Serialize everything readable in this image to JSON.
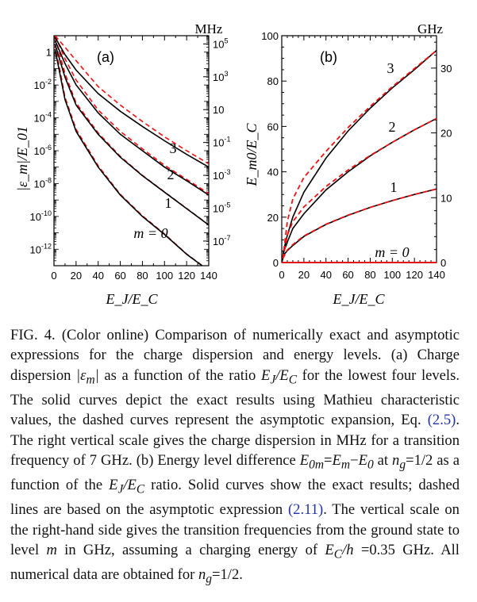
{
  "chart_data": [
    {
      "type": "line",
      "panel_label": "(a)",
      "xlabel": "E_J/E_C",
      "ylabel": "|ε_m|/E_01",
      "right_unit": "MHz",
      "y_scale": "log",
      "xlim": [
        0,
        140
      ],
      "ylim": [
        1e-13,
        10
      ],
      "x_ticks": [
        0,
        20,
        40,
        60,
        80,
        100,
        120,
        140
      ],
      "y_ticks_left": [
        {
          "base": "1",
          "exp": ""
        },
        {
          "base": "10",
          "exp": "-2"
        },
        {
          "base": "10",
          "exp": "-4"
        },
        {
          "base": "10",
          "exp": "-6"
        },
        {
          "base": "10",
          "exp": "-8"
        },
        {
          "base": "10",
          "exp": "-10"
        },
        {
          "base": "10",
          "exp": "-12"
        }
      ],
      "y_ticks_right": [
        {
          "base": "10",
          "exp": "5"
        },
        {
          "base": "10",
          "exp": "3"
        },
        {
          "base": "10",
          "exp": ""
        },
        {
          "base": "10",
          "exp": "-1"
        },
        {
          "base": "10",
          "exp": "-3"
        },
        {
          "base": "10",
          "exp": "-5"
        },
        {
          "base": "10",
          "exp": "-7"
        }
      ],
      "curve_labels": [
        "m = 0",
        "1",
        "2",
        "3"
      ],
      "series": [
        {
          "x": [
            1,
            10,
            20,
            40,
            60,
            80,
            100,
            120,
            140
          ],
          "y": [
            1.5,
            0.0013,
            1.5e-05,
            1e-07,
            2e-09,
            1e-10,
            8e-12,
            5e-13,
            5e-14
          ]
        },
        {
          "x": [
            1,
            10,
            20,
            40,
            60,
            80,
            100,
            120,
            140
          ],
          "y": [
            3,
            0.03,
            0.0006,
            1e-05,
            4e-07,
            3e-08,
            3e-09,
            3e-10,
            3e-11
          ]
        },
        {
          "x": [
            1,
            10,
            20,
            40,
            60,
            80,
            100,
            120,
            140
          ],
          "y": [
            5,
            0.2,
            0.01,
            0.0002,
            1e-05,
            1e-06,
            1e-07,
            1.5e-08,
            2e-09
          ]
        },
        {
          "x": [
            1,
            10,
            20,
            40,
            60,
            80,
            100,
            120,
            140
          ],
          "y": [
            8,
            0.7,
            0.08,
            0.003,
            0.00025,
            3e-05,
            4e-06,
            6e-07,
            1e-07
          ]
        }
      ],
      "asymptotic_series": [
        {
          "x": [
            1,
            10,
            20,
            40,
            60,
            80,
            100,
            120,
            140
          ],
          "y": [
            3,
            0.0018,
            2e-05,
            1.2e-07,
            2.2e-09,
            1.1e-10,
            8.5e-12,
            5.2e-13,
            5.2e-14
          ]
        },
        {
          "x": [
            1,
            10,
            20,
            40,
            60,
            80,
            100,
            120,
            140
          ],
          "y": [
            8,
            0.05,
            0.0008,
            1.2e-05,
            4.5e-07,
            3.2e-08,
            3.1e-09,
            3.1e-10,
            3.1e-11
          ]
        },
        {
          "x": [
            1,
            10,
            20,
            40,
            60,
            80,
            100,
            120,
            140
          ],
          "y": [
            10,
            0.4,
            0.02,
            0.0003,
            1.5e-05,
            1.3e-06,
            1.3e-07,
            1.8e-08,
            2.5e-09
          ]
        },
        {
          "x": [
            1,
            10,
            20,
            40,
            60,
            80,
            100,
            120,
            140
          ],
          "y": [
            10,
            2,
            0.3,
            0.008,
            0.0006,
            6e-05,
            7e-06,
            1e-06,
            1.6e-07
          ]
        }
      ]
    },
    {
      "type": "line",
      "panel_label": "(b)",
      "xlabel": "E_J/E_C",
      "ylabel": "E_m0/E_C",
      "right_unit": "GHz",
      "xlim": [
        0,
        140
      ],
      "ylim": [
        0,
        100
      ],
      "x_ticks": [
        0,
        20,
        40,
        60,
        80,
        100,
        120,
        140
      ],
      "y_ticks_left": [
        0,
        20,
        40,
        60,
        80,
        100
      ],
      "y_ticks_right": [
        0,
        10,
        20,
        30
      ],
      "curve_labels": [
        "m = 0",
        "1",
        "2",
        "3"
      ],
      "series": [
        {
          "x": [
            0,
            140
          ],
          "y": [
            0,
            0
          ]
        },
        {
          "x": [
            0,
            2,
            5,
            10,
            20,
            40,
            60,
            80,
            100,
            120,
            140
          ],
          "y": [
            0,
            3.5,
            5.2,
            7.5,
            11.5,
            16.8,
            20.8,
            24.3,
            27.3,
            30.0,
            32.4
          ]
        },
        {
          "x": [
            0,
            2,
            5,
            10,
            20,
            40,
            60,
            80,
            100,
            120,
            140
          ],
          "y": [
            0,
            5,
            9,
            15,
            21.5,
            32,
            40,
            47,
            53,
            58.5,
            63.5
          ]
        },
        {
          "x": [
            0,
            2,
            5,
            10,
            20,
            40,
            60,
            80,
            100,
            120,
            140
          ],
          "y": [
            0,
            6,
            12,
            20,
            31,
            46,
            58,
            68,
            77,
            85,
            93.5
          ]
        }
      ],
      "asymptotic_series": [
        {
          "x": [
            0,
            140
          ],
          "y": [
            0,
            0
          ]
        },
        {
          "x": [
            1,
            5,
            10,
            20,
            40,
            60,
            80,
            100,
            120,
            140
          ],
          "y": [
            1.8,
            5.5,
            7.9,
            11.7,
            16.9,
            20.9,
            24.3,
            27.3,
            30.0,
            32.4
          ]
        },
        {
          "x": [
            1,
            5,
            10,
            20,
            40,
            60,
            80,
            100,
            120,
            140
          ],
          "y": [
            1.8,
            12,
            18,
            24.5,
            33.5,
            40.8,
            47.2,
            53,
            58.5,
            63.5
          ]
        },
        {
          "x": [
            1,
            5,
            10,
            20,
            40,
            60,
            80,
            100,
            120,
            140
          ],
          "y": [
            1.8,
            18,
            28,
            37.5,
            49,
            59.5,
            68.8,
            77.5,
            85.5,
            93.5
          ]
        }
      ]
    }
  ],
  "caption": {
    "p1": "FIG. 4. (Color online) Comparison of numerically exact and asymptotic expressions for the charge dispersion and energy levels. (a) Charge dispersion ",
    "abs_eps": "|ε",
    "sub_m": "m",
    "abs_close": "|",
    "p2": " as a function of the ratio ",
    "ej": "E",
    "sub_j": "J",
    "slash": "/",
    "ec": "E",
    "sub_c": "C",
    "p3": " for the lowest four levels. The solid curves depict the exact results using Mathieu characteristic values, the dashed curves represent the asymptotic expansion, Eq. ",
    "ref1": "(2.5)",
    "p4": ". The right vertical scale gives the charge dispersion in MHz for a transition frequency of 7 GHz. (b) Energy level difference ",
    "e0m": "E",
    "sub_0m": "0m",
    "eq": "=",
    "em": "E",
    "sub_m2": "m",
    "minus": "−",
    "e0": "E",
    "sub_0": "0",
    "at": " at ",
    "ng": "n",
    "sub_g": "g",
    "half": "=1/2",
    "p5": " as a function of the ",
    "ej2": "E",
    "sub_j2": "J",
    "slash2": "/",
    "ec2": "E",
    "sub_c2": "C",
    "p6": " ratio. Solid curves show the exact results; dashed lines are based on the asymptotic expression ",
    "ref2": "(2.11)",
    "p7": ". The vertical scale on the right-hand side gives the transition frequencies from the ground state to level ",
    "m3": "m",
    "p8": " in GHz, assuming a charging energy of ",
    "ec3": "E",
    "sub_c3": "C",
    "overh": "/h",
    "p9": " =0.35 GHz. All numerical data are obtained for ",
    "ng2": "n",
    "sub_g2": "g",
    "half2": "=1/2",
    "p10": "."
  }
}
